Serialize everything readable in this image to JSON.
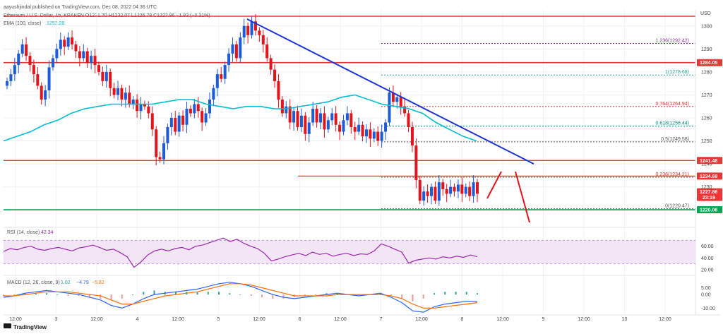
{
  "header": {
    "publisher": "aayushjindal published on TradingView.com, Dec 08, 2022 04:36 UTC",
    "symbol_line": "Ethereum / U.S. Dollar, 1h, KRAKEN  O1231.70  H1232.07  L1226.78  C1227.86  −1.83 (−0.31%)",
    "ema_label": "EMA (100, close)",
    "ema_value": "1252.28",
    "currency": "USD"
  },
  "footer": {
    "brand": "TradingView"
  },
  "chart_data": {
    "type": "candlestick",
    "title": "Ethereum / U.S. Dollar, 1h, KRAKEN",
    "currency": "USD",
    "ohlc_last": {
      "open": 1231.7,
      "high": 1232.07,
      "low": 1226.78,
      "close": 1227.86,
      "change": -1.83,
      "change_pct": "−0.31%"
    },
    "ylim": [
      1213,
      1307
    ],
    "y_ticks": [
      1300,
      1290,
      1280,
      1270,
      1260,
      1250,
      1240,
      1230
    ],
    "x_ticks": [
      "12:00",
      "3",
      "12:00",
      "4",
      "12:00",
      "5",
      "12:00",
      "6",
      "12:00",
      "7",
      "12:00",
      "8",
      "12:00",
      "9",
      "12:00",
      "10",
      "12:00"
    ],
    "closes": [
      1276,
      1279,
      1283,
      1288,
      1292,
      1287,
      1283,
      1279,
      1274,
      1268,
      1272,
      1282,
      1286,
      1290,
      1294,
      1291,
      1295,
      1292,
      1289,
      1286,
      1289,
      1284,
      1287,
      1283,
      1280,
      1276,
      1280,
      1273,
      1270,
      1273,
      1268,
      1271,
      1266,
      1268,
      1263,
      1266,
      1265,
      1262,
      1255,
      1243,
      1242,
      1249,
      1256,
      1260,
      1254,
      1261,
      1257,
      1264,
      1262,
      1266,
      1263,
      1258,
      1262,
      1268,
      1273,
      1279,
      1277,
      1283,
      1288,
      1292,
      1286,
      1295,
      1300,
      1296,
      1302,
      1298,
      1296,
      1292,
      1286,
      1281,
      1276,
      1268,
      1262,
      1265,
      1258,
      1263,
      1256,
      1261,
      1253,
      1258,
      1264,
      1258,
      1262,
      1255,
      1259,
      1262,
      1257,
      1254,
      1259,
      1262,
      1256,
      1254,
      1257,
      1252,
      1255,
      1251,
      1254,
      1250,
      1254,
      1258,
      1271,
      1267,
      1269,
      1265,
      1262,
      1256,
      1248,
      1233,
      1224,
      1228,
      1226,
      1230,
      1224,
      1232,
      1229,
      1227,
      1230,
      1228,
      1231,
      1227,
      1230,
      1226,
      1232,
      1227
    ],
    "ema100": [
      1250,
      1252,
      1254,
      1257,
      1259,
      1262,
      1264,
      1265,
      1266,
      1266,
      1266,
      1266,
      1267,
      1268,
      1268,
      1266,
      1265,
      1264,
      1265,
      1265,
      1264,
      1264,
      1265,
      1266,
      1267,
      1269,
      1270,
      1268,
      1266,
      1265,
      1264,
      1262,
      1258,
      1255,
      1252,
      1250
    ],
    "resistance_lines": [
      1305,
      1284.05,
      1241.48,
      1234.69
    ],
    "support_line": 1220.06,
    "trendline": {
      "from": 1303,
      "to": 1240
    },
    "fibonacci": [
      {
        "label": "1.236(1292.42)",
        "value": 1292.42,
        "color": "#9c27b0"
      },
      {
        "label": "1(1278.68)",
        "value": 1278.68,
        "color": "#26a69a"
      },
      {
        "label": "0.764(1264.94)",
        "value": 1264.94,
        "color": "#d32f2f"
      },
      {
        "label": "0.618(1256.44)",
        "value": 1256.44,
        "color": "#00897b"
      },
      {
        "label": "0.5(1249.58)",
        "value": 1249.58,
        "color": "#555555"
      },
      {
        "label": "0.236(1234.21)",
        "value": 1234.21,
        "color": "#d32f2f"
      },
      {
        "label": "0(1220.47)",
        "value": 1220.47,
        "color": "#555555"
      }
    ],
    "price_tags": [
      {
        "value": 1284.05,
        "label": "1284.05",
        "color": "#e53935"
      },
      {
        "value": 1241.48,
        "label": "1241.48",
        "color": "#e53935"
      },
      {
        "value": 1234.69,
        "label": "1234.69",
        "color": "#e53935"
      },
      {
        "value": 1227.86,
        "label": "1227.86",
        "color": "#e53935",
        "extra": "23:19"
      },
      {
        "value": 1220.06,
        "label": "1220.06",
        "color": "#00a651"
      }
    ],
    "rsi": {
      "label": "RSI (14, close)",
      "value": "42.34",
      "ticks": [
        60.0,
        40.0,
        20.0
      ],
      "band": [
        30,
        70
      ],
      "values": [
        51,
        56,
        54,
        58,
        60,
        55,
        53,
        56,
        58,
        55,
        52,
        57,
        59,
        62,
        58,
        53,
        55,
        49,
        42,
        24,
        33,
        45,
        52,
        55,
        52,
        56,
        58,
        54,
        60,
        62,
        66,
        70,
        74,
        68,
        72,
        65,
        60,
        56,
        48,
        35,
        38,
        42,
        45,
        48,
        44,
        50,
        46,
        48,
        43,
        46,
        48,
        44,
        47,
        46,
        52,
        64,
        60,
        55,
        50,
        31,
        36,
        38,
        40,
        38,
        42,
        40,
        43,
        41,
        45,
        42
      ]
    },
    "macd": {
      "label": "MACD (12, 26, close, 9)",
      "values_text": [
        "1.02",
        "−4.79",
        "−5.82"
      ],
      "ticks": [
        5.0,
        0.0,
        -10.0
      ],
      "macd": [
        -2,
        -1,
        1,
        2,
        3,
        2,
        1,
        0,
        -2,
        -4,
        -8,
        -10,
        -7,
        -3,
        0,
        1,
        2,
        3,
        4,
        6,
        8,
        9,
        8,
        6,
        3,
        0,
        -2,
        -3,
        -2,
        -1,
        0,
        1,
        0,
        -1,
        0,
        1,
        -2,
        -6,
        -12,
        -13,
        -9,
        -7,
        -6,
        -5,
        -5
      ],
      "signal": [
        -1,
        -1,
        0,
        1,
        2,
        2,
        2,
        1,
        0,
        -1,
        -4,
        -7,
        -7,
        -5,
        -3,
        -1,
        0,
        1,
        2,
        4,
        6,
        8,
        8,
        7,
        5,
        3,
        1,
        -1,
        -1,
        -1,
        -1,
        0,
        0,
        0,
        0,
        0,
        -1,
        -3,
        -7,
        -10,
        -10,
        -9,
        -8,
        -7,
        -6
      ]
    }
  }
}
